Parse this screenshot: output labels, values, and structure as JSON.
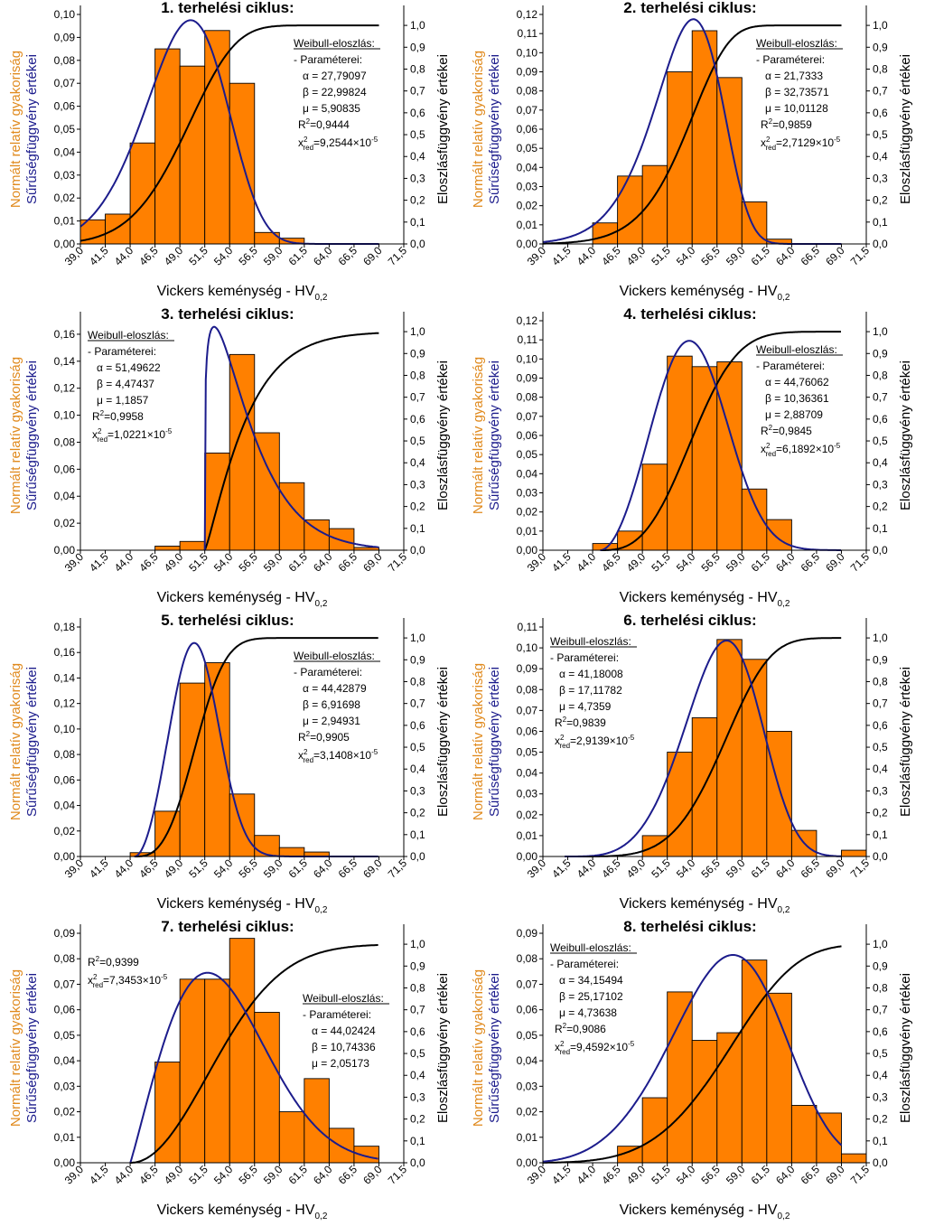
{
  "colors": {
    "bar_fill": "#FF8000",
    "density": "#1C1C8C",
    "cdf": "#000000",
    "orange_label": "#E08A1E",
    "blue_label": "#1C1C8C"
  },
  "chart_data": [
    {
      "type": "bar",
      "title": "1. terhelési ciklus:",
      "xlabel_main": "Vickers keménység - HV",
      "xlabel_sub": "0,2",
      "ylabel_left_1": "Normált relatív gyakoriság",
      "ylabel_left_2": "Sűrűségfüggvény értékei",
      "ylabel_right": "Eloszlásfüggvény értékei",
      "x_ticks": [
        "39,0",
        "41,5",
        "44,0",
        "46,5",
        "49,0",
        "51,5",
        "54,0",
        "56,5",
        "59,0",
        "61,5",
        "64,0",
        "66,5",
        "69,0",
        "71,5"
      ],
      "y_ticks": [
        "0,00",
        "0,01",
        "0,02",
        "0,03",
        "0,04",
        "0,05",
        "0,06",
        "0,07",
        "0,08",
        "0,09",
        "0,10"
      ],
      "y2_ticks": [
        "0,0",
        "0,1",
        "0,2",
        "0,3",
        "0,4",
        "0,5",
        "0,6",
        "0,7",
        "0,8",
        "0,9",
        "1,0"
      ],
      "ylim": [
        0,
        0.1
      ],
      "bins_start": 39.0,
      "bin_width": 2.5,
      "values": [
        0.0105,
        0.013,
        0.044,
        0.085,
        0.0775,
        0.093,
        0.07,
        0.005,
        0.0025,
        0,
        0,
        0,
        0
      ],
      "weibull": {
        "alpha": 27.79097,
        "beta": 22.99824,
        "mu": 5.90835,
        "r2": 0.9444
      },
      "pdf_peak": 0.0975,
      "legend_position": "top-right",
      "legend": {
        "heading": "Weibull-eloszlás:",
        "params_label": "- Paraméterei:",
        "alpha": "α = 27,79097",
        "beta": "β = 22,99824",
        "mu": "μ = 5,90835",
        "r2_prefix": "R",
        "r2_value": "=0,9444",
        "chi_prefix": "x",
        "chi_value": "=9,2544×10",
        "chi_exp": "-5"
      }
    },
    {
      "type": "bar",
      "title": "2. terhelési ciklus:",
      "xlabel_main": "Vickers keménység - HV",
      "xlabel_sub": "0,2",
      "ylabel_left_1": "Normált relatív gyakoriság",
      "ylabel_left_2": "Sűrűségfüggvény értékei",
      "ylabel_right": "Eloszlásfüggvény értékei",
      "x_ticks": [
        "39,0",
        "41,5",
        "44,0",
        "46,5",
        "49,0",
        "51,5",
        "54,0",
        "56,5",
        "59,0",
        "61,5",
        "64,0",
        "66,5",
        "69,0",
        "71,5"
      ],
      "y_ticks": [
        "0,00",
        "0,01",
        "0,02",
        "0,03",
        "0,04",
        "0,05",
        "0,06",
        "0,07",
        "0,08",
        "0,09",
        "0,10",
        "0,11",
        "0,12"
      ],
      "y2_ticks": [
        "0,0",
        "0,1",
        "0,2",
        "0,3",
        "0,4",
        "0,5",
        "0,6",
        "0,7",
        "0,8",
        "0,9",
        "1,0"
      ],
      "ylim": [
        0,
        0.12
      ],
      "bins_start": 39.0,
      "bin_width": 2.5,
      "values": [
        0,
        0,
        0.011,
        0.0355,
        0.041,
        0.09,
        0.1115,
        0.087,
        0.022,
        0.0025,
        0,
        0,
        0
      ],
      "weibull": {
        "alpha": 21.7333,
        "beta": 32.73571,
        "mu": 10.01128,
        "r2": 0.9859
      },
      "pdf_peak": 0.1175,
      "legend_position": "top-right",
      "legend": {
        "heading": "Weibull-eloszlás:",
        "params_label": "- Paraméterei:",
        "alpha": "α = 21,7333",
        "beta": "β = 32,73571",
        "mu": "μ = 10,01128",
        "r2_prefix": "R",
        "r2_value": "=0,9859",
        "chi_prefix": "x",
        "chi_value": "=2,7129×10",
        "chi_exp": "-5"
      }
    },
    {
      "type": "bar",
      "title": "3. terhelési ciklus:",
      "xlabel_main": "Vickers keménység - HV",
      "xlabel_sub": "0,2",
      "ylabel_left_1": "Normált relatív gyakoriság",
      "ylabel_left_2": "Sűrűségfüggvény értékei",
      "ylabel_right": "Eloszlásfüggvény értékei",
      "x_ticks": [
        "39,0",
        "41,5",
        "44,0",
        "46,5",
        "49,0",
        "51,5",
        "54,0",
        "56,5",
        "59,0",
        "61,5",
        "64,0",
        "66,5",
        "69,0",
        "71,5"
      ],
      "y_ticks": [
        "0,00",
        "0,02",
        "0,04",
        "0,06",
        "0,08",
        "0,10",
        "0,12",
        "0,14",
        "0,16"
      ],
      "y2_ticks": [
        "0,0",
        "0,1",
        "0,2",
        "0,3",
        "0,4",
        "0,5",
        "0,6",
        "0,7",
        "0,8",
        "0,9",
        "1,0"
      ],
      "ylim": [
        0,
        0.17
      ],
      "bins_start": 39.0,
      "bin_width": 2.5,
      "values": [
        0,
        0,
        0,
        0.003,
        0.0065,
        0.072,
        0.145,
        0.087,
        0.05,
        0.0225,
        0.016,
        0.002,
        0
      ],
      "weibull": {
        "alpha": 51.49622,
        "beta": 4.47437,
        "mu": 1.1857,
        "r2": 0.9958
      },
      "pdf_peak": 0.1655,
      "legend_position": "top-left",
      "legend": {
        "heading": "Weibull-eloszlás:",
        "params_label": "- Paraméterei:",
        "alpha": "α = 51,49622",
        "beta": "β = 4,47437",
        "mu": "μ = 1,1857",
        "r2_prefix": "R",
        "r2_value": "=0,9958",
        "chi_prefix": "x",
        "chi_value": "=1,0221×10",
        "chi_exp": "-5"
      }
    },
    {
      "type": "bar",
      "title": "4. terhelési ciklus:",
      "xlabel_main": "Vickers keménység - HV",
      "xlabel_sub": "0,2",
      "ylabel_left_1": "Normált relatív gyakoriság",
      "ylabel_left_2": "Sűrűségfüggvény értékei",
      "ylabel_right": "Eloszlásfüggvény értékei",
      "x_ticks": [
        "39,0",
        "41,5",
        "44,0",
        "46,5",
        "49,0",
        "51,5",
        "54,0",
        "56,5",
        "59,0",
        "61,5",
        "64,0",
        "66,5",
        "69,0",
        "71,5"
      ],
      "y_ticks": [
        "0,00",
        "0,01",
        "0,02",
        "0,03",
        "0,04",
        "0,05",
        "0,06",
        "0,07",
        "0,08",
        "0,09",
        "0,10",
        "0,11",
        "0,12"
      ],
      "y2_ticks": [
        "0,0",
        "0,1",
        "0,2",
        "0,3",
        "0,4",
        "0,5",
        "0,6",
        "0,7",
        "0,8",
        "0,9",
        "1,0"
      ],
      "ylim": [
        0,
        0.12
      ],
      "bins_start": 39.0,
      "bin_width": 2.5,
      "values": [
        0,
        0,
        0.0035,
        0.01,
        0.045,
        0.1015,
        0.096,
        0.0985,
        0.032,
        0.016,
        0,
        0,
        0
      ],
      "weibull": {
        "alpha": 44.76062,
        "beta": 10.36361,
        "mu": 2.88709,
        "r2": 0.9845
      },
      "pdf_peak": 0.1095,
      "legend_position": "top-right",
      "legend": {
        "heading": "Weibull-eloszlás:",
        "params_label": "- Paraméterei:",
        "alpha": "α = 44,76062",
        "beta": "β = 10,36361",
        "mu": "μ = 2,88709",
        "r2_prefix": "R",
        "r2_value": "=0,9845",
        "chi_prefix": "x",
        "chi_value": "=6,1892×10",
        "chi_exp": "-5"
      }
    },
    {
      "type": "bar",
      "title": "5. terhelési ciklus:",
      "xlabel_main": "Vickers keménység - HV",
      "xlabel_sub": "0,2",
      "ylabel_left_1": "Normált relatív gyakoriság",
      "ylabel_left_2": "Sűrűségfüggvény értékei",
      "ylabel_right": "Eloszlásfüggvény értékei",
      "x_ticks": [
        "39,0",
        "41,5",
        "44,0",
        "46,5",
        "49,0",
        "51,5",
        "54,0",
        "56,5",
        "59,0",
        "61,5",
        "64,0",
        "66,5",
        "69,0",
        "71,5"
      ],
      "y_ticks": [
        "0,00",
        "0,02",
        "0,04",
        "0,06",
        "0,08",
        "0,10",
        "0,12",
        "0,14",
        "0,16",
        "0,18"
      ],
      "y2_ticks": [
        "0,0",
        "0,1",
        "0,2",
        "0,3",
        "0,4",
        "0,5",
        "0,6",
        "0,7",
        "0,8",
        "0,9",
        "1,0"
      ],
      "ylim": [
        0,
        0.18
      ],
      "bins_start": 39.0,
      "bin_width": 2.5,
      "values": [
        0,
        0,
        0.003,
        0.0355,
        0.136,
        0.152,
        0.049,
        0.0165,
        0.007,
        0.0035,
        0,
        0,
        0
      ],
      "weibull": {
        "alpha": 44.42879,
        "beta": 6.91698,
        "mu": 2.94931,
        "r2": 0.9905
      },
      "pdf_peak": 0.1675,
      "legend_position": "top-right",
      "legend": {
        "heading": "Weibull-eloszlás:",
        "params_label": "- Paraméterei:",
        "alpha": "α = 44,42879",
        "beta": "β = 6,91698",
        "mu": "μ = 2,94931",
        "r2_prefix": "R",
        "r2_value": "=0,9905",
        "chi_prefix": "x",
        "chi_value": "=3,1408×10",
        "chi_exp": "-5"
      }
    },
    {
      "type": "bar",
      "title": "6. terhelési ciklus:",
      "xlabel_main": "Vickers keménység - HV",
      "xlabel_sub": "0,2",
      "ylabel_left_1": "Normált relatív gyakoriság",
      "ylabel_left_2": "Sűrűségfüggvény értékei",
      "ylabel_right": "Eloszlásfüggvény értékei",
      "x_ticks": [
        "39,0",
        "41,5",
        "44,0",
        "46,5",
        "49,0",
        "51,5",
        "54,0",
        "56,5",
        "59,0",
        "61,5",
        "64,0",
        "66,5",
        "69,0",
        "71,5"
      ],
      "y_ticks": [
        "0,00",
        "0,01",
        "0,02",
        "0,03",
        "0,04",
        "0,05",
        "0,06",
        "0,07",
        "0,08",
        "0,09",
        "0,10",
        "0,11"
      ],
      "y2_ticks": [
        "0,0",
        "0,1",
        "0,2",
        "0,3",
        "0,4",
        "0,5",
        "0,6",
        "0,7",
        "0,8",
        "0,9",
        "1,0"
      ],
      "ylim": [
        0,
        0.11
      ],
      "bins_start": 39.0,
      "bin_width": 2.5,
      "values": [
        0,
        0,
        0,
        0,
        0.01,
        0.05,
        0.0665,
        0.104,
        0.0945,
        0.06,
        0.0125,
        0,
        0.003
      ],
      "weibull": {
        "alpha": 41.18008,
        "beta": 17.11782,
        "mu": 4.7359,
        "r2": 0.9839
      },
      "pdf_peak": 0.1035,
      "legend_position": "top-left",
      "legend": {
        "heading": "Weibull-eloszlás:",
        "params_label": "- Paraméterei:",
        "alpha": "α = 41,18008",
        "beta": "β = 17,11782",
        "mu": "μ = 4,7359",
        "r2_prefix": "R",
        "r2_value": "=0,9839",
        "chi_prefix": "x",
        "chi_value": "=2,9139×10",
        "chi_exp": "-5"
      }
    },
    {
      "type": "bar",
      "title": "7. terhelési ciklus:",
      "xlabel_main": "Vickers keménység - HV",
      "xlabel_sub": "0,2",
      "ylabel_left_1": "Normált relatív gyakoriság",
      "ylabel_left_2": "Sűrűségfüggvény értékei",
      "ylabel_right": "Eloszlásfüggvény értékei",
      "x_ticks": [
        "39,0",
        "41,5",
        "44,0",
        "46,5",
        "49,0",
        "51,5",
        "54,0",
        "56,5",
        "59,0",
        "61,5",
        "64,0",
        "66,5",
        "69,0",
        "71,5"
      ],
      "y_ticks": [
        "0,00",
        "0,01",
        "0,02",
        "0,03",
        "0,04",
        "0,05",
        "0,06",
        "0,07",
        "0,08",
        "0,09"
      ],
      "y2_ticks": [
        "0,0",
        "0,1",
        "0,2",
        "0,3",
        "0,4",
        "0,5",
        "0,6",
        "0,7",
        "0,8",
        "0,9",
        "1,0"
      ],
      "ylim": [
        0,
        0.09
      ],
      "bins_start": 39.0,
      "bin_width": 2.5,
      "values": [
        0,
        0,
        0,
        0.0395,
        0.072,
        0.072,
        0.088,
        0.059,
        0.02,
        0.033,
        0.0135,
        0.0065,
        0
      ],
      "weibull": {
        "alpha": 44.02424,
        "beta": 10.74336,
        "mu": 2.05173,
        "r2": 0.9399
      },
      "pdf_peak": 0.0745,
      "legend_position": "top-right",
      "legend": {
        "heading": "Weibull-eloszlás:",
        "params_label": "- Paraméterei:",
        "alpha": "α = 44,02424",
        "beta": "β = 10,74336",
        "mu": "μ = 2,05173",
        "r2_prefix": "R",
        "r2_value": "=0,9399",
        "chi_prefix": "x",
        "chi_value": "=7,3453×10",
        "chi_exp": "-5"
      }
    },
    {
      "type": "bar",
      "title": "8. terhelési ciklus:",
      "xlabel_main": "Vickers keménység - HV",
      "xlabel_sub": "0,2",
      "ylabel_left_1": "Normált relatív gyakoriság",
      "ylabel_left_2": "Sűrűségfüggvény értékei",
      "ylabel_right": "Eloszlásfüggvény értékei",
      "x_ticks": [
        "39,0",
        "41,5",
        "44,0",
        "46,5",
        "49,0",
        "51,5",
        "54,0",
        "56,5",
        "59,0",
        "61,5",
        "64,0",
        "66,5",
        "69,0",
        "71,5"
      ],
      "y_ticks": [
        "0,00",
        "0,01",
        "0,02",
        "0,03",
        "0,04",
        "0,05",
        "0,06",
        "0,07",
        "0,08",
        "0,09"
      ],
      "y2_ticks": [
        "0,0",
        "0,1",
        "0,2",
        "0,3",
        "0,4",
        "0,5",
        "0,6",
        "0,7",
        "0,8",
        "0,9",
        "1,0"
      ],
      "ylim": [
        0,
        0.09
      ],
      "bins_start": 39.0,
      "bin_width": 2.5,
      "values": [
        0,
        0,
        0,
        0.0065,
        0.0255,
        0.067,
        0.048,
        0.051,
        0.0795,
        0.0665,
        0.0225,
        0.0195,
        0.0035
      ],
      "weibull": {
        "alpha": 34.15494,
        "beta": 25.17102,
        "mu": 4.73638,
        "r2": 0.9086
      },
      "pdf_peak": 0.0815,
      "legend_position": "top-left",
      "legend": {
        "heading": "Weibull-eloszlás:",
        "params_label": "- Paraméterei:",
        "alpha": "α = 34,15494",
        "beta": "β = 25,17102",
        "mu": "μ = 4,73638",
        "r2_prefix": "R",
        "r2_value": "=0,9086",
        "chi_prefix": "x",
        "chi_value": "=9,4592×10",
        "chi_exp": "-5"
      }
    }
  ]
}
